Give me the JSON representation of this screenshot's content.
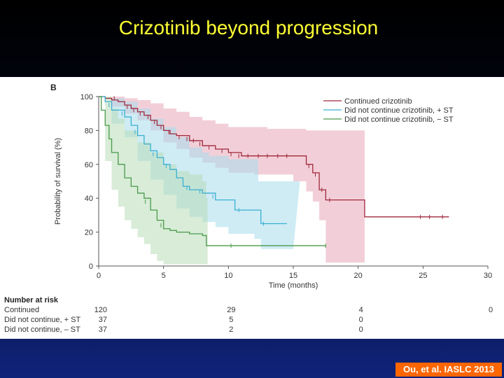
{
  "slide": {
    "title": "Crizotinib beyond progression",
    "citation": "Ou, et al. IASLC 2013"
  },
  "chart_data": {
    "type": "line",
    "panel_label": "B",
    "title": "",
    "xlabel": "Time (months)",
    "ylabel": "Probability of survival (%)",
    "xlim": [
      0,
      30
    ],
    "ylim": [
      0,
      100
    ],
    "x_ticks": [
      0,
      5,
      10,
      15,
      20,
      25,
      30
    ],
    "y_ticks": [
      0,
      20,
      40,
      60,
      80,
      100
    ],
    "grid": false,
    "legend_position": "top-right",
    "series": [
      {
        "name": "Continued crizotinib",
        "color": "#a0283c",
        "band_color": "#e8a8b8",
        "points": [
          [
            0,
            100
          ],
          [
            0.5,
            99
          ],
          [
            1,
            98
          ],
          [
            1.5,
            97
          ],
          [
            2,
            95
          ],
          [
            2.5,
            93
          ],
          [
            3,
            91
          ],
          [
            3.5,
            89
          ],
          [
            4,
            86
          ],
          [
            4.5,
            83
          ],
          [
            5,
            80
          ],
          [
            5.5,
            78
          ],
          [
            6,
            77
          ],
          [
            7,
            74
          ],
          [
            8,
            71
          ],
          [
            9,
            69
          ],
          [
            10,
            67
          ],
          [
            11,
            65
          ],
          [
            12,
            65
          ],
          [
            14,
            65
          ],
          [
            16,
            60
          ],
          [
            16.5,
            55
          ],
          [
            17,
            45
          ],
          [
            17.5,
            39
          ],
          [
            20,
            39
          ],
          [
            20.5,
            29
          ],
          [
            27,
            29
          ]
        ],
        "ci_upper": [
          [
            0,
            100
          ],
          [
            1,
            100
          ],
          [
            2,
            99
          ],
          [
            3,
            98
          ],
          [
            4,
            96
          ],
          [
            5,
            93
          ],
          [
            6,
            91
          ],
          [
            7,
            88
          ],
          [
            8,
            86
          ],
          [
            9,
            84
          ],
          [
            10,
            82
          ],
          [
            12,
            82
          ],
          [
            13,
            81
          ],
          [
            16,
            80
          ],
          [
            20,
            80
          ],
          [
            20.5,
            80
          ]
        ],
        "ci_lower": [
          [
            0,
            100
          ],
          [
            1,
            94
          ],
          [
            2,
            90
          ],
          [
            3,
            86
          ],
          [
            4,
            80
          ],
          [
            5,
            73
          ],
          [
            6,
            69
          ],
          [
            7,
            64
          ],
          [
            8,
            61
          ],
          [
            9,
            58
          ],
          [
            10,
            55
          ],
          [
            12,
            54
          ],
          [
            15,
            50
          ],
          [
            16,
            44
          ],
          [
            16.5,
            38
          ],
          [
            17,
            27
          ],
          [
            17.5,
            2
          ],
          [
            20.5,
            2
          ]
        ],
        "censors": [
          [
            1.2,
            99
          ],
          [
            2.2,
            94
          ],
          [
            2.7,
            92
          ],
          [
            3.2,
            90
          ],
          [
            3.8,
            88
          ],
          [
            4.3,
            85
          ],
          [
            4.8,
            82
          ],
          [
            5.4,
            79
          ],
          [
            6.2,
            76
          ],
          [
            6.8,
            75
          ],
          [
            7.3,
            74
          ],
          [
            7.8,
            72
          ],
          [
            8.5,
            70
          ],
          [
            9.5,
            68
          ],
          [
            10.2,
            66
          ],
          [
            10.8,
            65
          ],
          [
            11.5,
            65
          ],
          [
            12.3,
            65
          ],
          [
            13,
            65
          ],
          [
            13.8,
            65
          ],
          [
            14.5,
            65
          ],
          [
            16.2,
            59
          ],
          [
            16.7,
            54
          ],
          [
            17.2,
            45
          ],
          [
            17.8,
            39
          ],
          [
            24.8,
            29
          ],
          [
            25.5,
            29
          ],
          [
            26.5,
            29
          ]
        ]
      },
      {
        "name": "Did not continue crizotinib, + ST",
        "color": "#3aafd0",
        "band_color": "#a8dcec",
        "points": [
          [
            0,
            100
          ],
          [
            0.5,
            97
          ],
          [
            1,
            92
          ],
          [
            2,
            88
          ],
          [
            2.5,
            83
          ],
          [
            3,
            77
          ],
          [
            3.5,
            72
          ],
          [
            4,
            68
          ],
          [
            4.5,
            64
          ],
          [
            5,
            60
          ],
          [
            5.5,
            57
          ],
          [
            6,
            52
          ],
          [
            6.5,
            47
          ],
          [
            7,
            45
          ],
          [
            8,
            43
          ],
          [
            9,
            39
          ],
          [
            10,
            39
          ],
          [
            10.5,
            33
          ],
          [
            12,
            33
          ],
          [
            12.5,
            25
          ],
          [
            14.5,
            25
          ]
        ],
        "ci_upper": [
          [
            0,
            100
          ],
          [
            0.5,
            100
          ],
          [
            1,
            99
          ],
          [
            2,
            97
          ],
          [
            3,
            93
          ],
          [
            4,
            87
          ],
          [
            5,
            82
          ],
          [
            6,
            76
          ],
          [
            7,
            70
          ],
          [
            8,
            67
          ],
          [
            8.5,
            65
          ],
          [
            10,
            63
          ],
          [
            12,
            63
          ],
          [
            12.3,
            50
          ],
          [
            15,
            50
          ],
          [
            15.5,
            49
          ]
        ],
        "ci_lower": [
          [
            0,
            100
          ],
          [
            1,
            84
          ],
          [
            2,
            76
          ],
          [
            3,
            62
          ],
          [
            4,
            51
          ],
          [
            5,
            42
          ],
          [
            6,
            34
          ],
          [
            7,
            29
          ],
          [
            8,
            26
          ],
          [
            9,
            23
          ],
          [
            10,
            19
          ],
          [
            12,
            16
          ],
          [
            12.5,
            10
          ],
          [
            15,
            10
          ]
        ],
        "censors": [
          [
            0.8,
            95
          ],
          [
            1.8,
            90
          ],
          [
            2.8,
            79
          ],
          [
            4.2,
            66
          ],
          [
            5.2,
            59
          ],
          [
            6.8,
            46
          ],
          [
            7.8,
            44
          ],
          [
            8.8,
            41
          ],
          [
            10.8,
            33
          ],
          [
            12.7,
            25
          ]
        ]
      },
      {
        "name": "Did not continue crizotinib, − ST",
        "color": "#4a9a4a",
        "band_color": "#b8dcb8",
        "points": [
          [
            0,
            100
          ],
          [
            0.2,
            92
          ],
          [
            0.5,
            83
          ],
          [
            0.8,
            75
          ],
          [
            1,
            67
          ],
          [
            1.5,
            60
          ],
          [
            2,
            52
          ],
          [
            2.5,
            47
          ],
          [
            3,
            43
          ],
          [
            3.5,
            40
          ],
          [
            4,
            33
          ],
          [
            4.5,
            27
          ],
          [
            5,
            22
          ],
          [
            5.5,
            21
          ],
          [
            6,
            20
          ],
          [
            7,
            19
          ],
          [
            8,
            18
          ],
          [
            8.3,
            12
          ],
          [
            17.5,
            12
          ]
        ],
        "ci_upper": [
          [
            0,
            100
          ],
          [
            0.5,
            100
          ],
          [
            1,
            93
          ],
          [
            1.5,
            87
          ],
          [
            2,
            80
          ],
          [
            3,
            73
          ],
          [
            4,
            67
          ],
          [
            5,
            60
          ],
          [
            6,
            56
          ],
          [
            7,
            54
          ],
          [
            8,
            50
          ],
          [
            8.3,
            40
          ],
          [
            8.4,
            37
          ]
        ],
        "ci_lower": [
          [
            0,
            100
          ],
          [
            0.5,
            62
          ],
          [
            1,
            45
          ],
          [
            1.5,
            35
          ],
          [
            2,
            27
          ],
          [
            2.5,
            22
          ],
          [
            3,
            17
          ],
          [
            3.5,
            13
          ],
          [
            4,
            7
          ],
          [
            4.5,
            3
          ],
          [
            5,
            1
          ],
          [
            8.4,
            0
          ]
        ],
        "censors": [
          [
            3.6,
            38
          ],
          [
            4.8,
            24
          ],
          [
            10.2,
            12
          ],
          [
            17.5,
            12
          ]
        ]
      }
    ],
    "risk_table": {
      "title": "Number at risk",
      "x_positions": [
        0,
        10,
        20,
        30
      ],
      "rows": [
        {
          "label": "Continued",
          "values": [
            "120",
            "29",
            "4",
            "0"
          ]
        },
        {
          "label": "Did not continue, + ST",
          "values": [
            "37",
            "5",
            "0"
          ]
        },
        {
          "label": "Did not continue, – ST",
          "values": [
            "37",
            "2",
            "0"
          ]
        }
      ]
    }
  }
}
